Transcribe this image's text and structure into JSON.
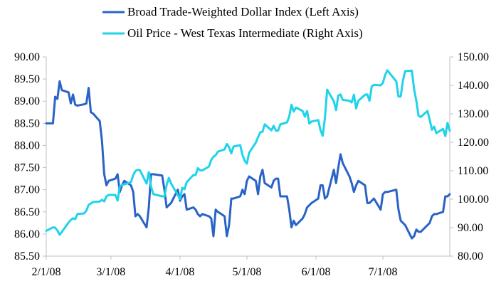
{
  "chart_data": {
    "type": "line",
    "legend_position": "top",
    "grid": false,
    "colors": {
      "dollar": "#2a63c6",
      "oil": "#1fd3ea",
      "axis": "#bfbfbf"
    },
    "x_tick_labels": [
      "2/1/08",
      "3/1/08",
      "4/1/08",
      "5/1/08",
      "6/1/08",
      "7/1/08"
    ],
    "x_tick_dates": [
      "2008-02-01",
      "2008-03-01",
      "2008-04-01",
      "2008-05-01",
      "2008-06-01",
      "2008-07-01"
    ],
    "xlim": [
      "2008-02-01",
      "2008-07-31"
    ],
    "y_left": {
      "ylim": [
        85.5,
        90.0
      ],
      "tick_labels": [
        "85.50",
        "86.00",
        "86.50",
        "87.00",
        "87.50",
        "88.00",
        "88.50",
        "89.00",
        "89.50",
        "90.00"
      ]
    },
    "y_right": {
      "ylim": [
        80.0,
        150.0
      ],
      "tick_labels": [
        "80.00",
        "90.00",
        "100.00",
        "110.00",
        "120.00",
        "130.00",
        "140.00",
        "150.00"
      ]
    },
    "series": [
      {
        "name": "Broad Trade-Weighted Dollar Index (Left Axis)",
        "axis": "left",
        "points": [
          [
            "2008-02-01",
            88.5
          ],
          [
            "2008-02-04",
            88.5
          ],
          [
            "2008-02-05",
            89.1
          ],
          [
            "2008-02-06",
            89.05
          ],
          [
            "2008-02-07",
            89.45
          ],
          [
            "2008-02-08",
            89.25
          ],
          [
            "2008-02-11",
            89.2
          ],
          [
            "2008-02-12",
            88.95
          ],
          [
            "2008-02-13",
            89.15
          ],
          [
            "2008-02-14",
            88.92
          ],
          [
            "2008-02-15",
            88.9
          ],
          [
            "2008-02-18",
            88.93
          ],
          [
            "2008-02-19",
            88.95
          ],
          [
            "2008-02-20",
            89.3
          ],
          [
            "2008-02-21",
            88.75
          ],
          [
            "2008-02-22",
            88.72
          ],
          [
            "2008-02-25",
            88.55
          ],
          [
            "2008-02-26",
            88.1
          ],
          [
            "2008-02-27",
            87.35
          ],
          [
            "2008-02-28",
            87.1
          ],
          [
            "2008-02-29",
            87.2
          ],
          [
            "2008-03-03",
            87.25
          ],
          [
            "2008-03-04",
            87.35
          ],
          [
            "2008-03-05",
            86.95
          ],
          [
            "2008-03-06",
            87.1
          ],
          [
            "2008-03-07",
            87.2
          ],
          [
            "2008-03-10",
            87.1
          ],
          [
            "2008-03-11",
            86.95
          ],
          [
            "2008-03-12",
            86.4
          ],
          [
            "2008-03-13",
            86.45
          ],
          [
            "2008-03-14",
            86.4
          ],
          [
            "2008-03-17",
            86.15
          ],
          [
            "2008-03-18",
            86.6
          ],
          [
            "2008-03-19",
            87.35
          ],
          [
            "2008-03-20",
            87.35
          ],
          [
            "2008-03-24",
            87.32
          ],
          [
            "2008-03-25",
            87.0
          ],
          [
            "2008-03-26",
            86.6
          ],
          [
            "2008-03-27",
            86.65
          ],
          [
            "2008-03-28",
            86.7
          ],
          [
            "2008-03-31",
            87.0
          ],
          [
            "2008-04-01",
            86.75
          ],
          [
            "2008-04-02",
            86.85
          ],
          [
            "2008-04-03",
            86.9
          ],
          [
            "2008-04-04",
            86.55
          ],
          [
            "2008-04-07",
            86.6
          ],
          [
            "2008-04-08",
            86.55
          ],
          [
            "2008-04-09",
            86.45
          ],
          [
            "2008-04-10",
            86.4
          ],
          [
            "2008-04-11",
            86.45
          ],
          [
            "2008-04-14",
            86.4
          ],
          [
            "2008-04-15",
            86.35
          ],
          [
            "2008-04-16",
            85.95
          ],
          [
            "2008-04-17",
            86.55
          ],
          [
            "2008-04-18",
            86.5
          ],
          [
            "2008-04-21",
            86.4
          ],
          [
            "2008-04-22",
            85.95
          ],
          [
            "2008-04-23",
            86.2
          ],
          [
            "2008-04-24",
            86.8
          ],
          [
            "2008-04-25",
            86.8
          ],
          [
            "2008-04-28",
            86.85
          ],
          [
            "2008-04-29",
            87.0
          ],
          [
            "2008-04-30",
            86.9
          ],
          [
            "2008-05-01",
            87.2
          ],
          [
            "2008-05-02",
            87.3
          ],
          [
            "2008-05-05",
            87.2
          ],
          [
            "2008-05-06",
            86.9
          ],
          [
            "2008-05-07",
            87.3
          ],
          [
            "2008-05-08",
            87.45
          ],
          [
            "2008-05-09",
            87.15
          ],
          [
            "2008-05-12",
            87.05
          ],
          [
            "2008-05-13",
            87.2
          ],
          [
            "2008-05-14",
            87.25
          ],
          [
            "2008-05-15",
            87.25
          ],
          [
            "2008-05-16",
            86.85
          ],
          [
            "2008-05-19",
            86.85
          ],
          [
            "2008-05-20",
            86.55
          ],
          [
            "2008-05-21",
            86.15
          ],
          [
            "2008-05-22",
            86.3
          ],
          [
            "2008-05-23",
            86.2
          ],
          [
            "2008-05-26",
            86.35
          ],
          [
            "2008-05-27",
            86.45
          ],
          [
            "2008-05-28",
            86.6
          ],
          [
            "2008-05-29",
            86.65
          ],
          [
            "2008-05-30",
            86.7
          ],
          [
            "2008-06-02",
            86.8
          ],
          [
            "2008-06-03",
            87.1
          ],
          [
            "2008-06-04",
            87.1
          ],
          [
            "2008-06-05",
            86.8
          ],
          [
            "2008-06-06",
            86.85
          ],
          [
            "2008-06-09",
            87.45
          ],
          [
            "2008-06-10",
            87.15
          ],
          [
            "2008-06-11",
            87.5
          ],
          [
            "2008-06-12",
            87.8
          ],
          [
            "2008-06-13",
            87.6
          ],
          [
            "2008-06-16",
            87.3
          ],
          [
            "2008-06-17",
            87.15
          ],
          [
            "2008-06-18",
            86.95
          ],
          [
            "2008-06-19",
            87.1
          ],
          [
            "2008-06-20",
            87.2
          ],
          [
            "2008-06-23",
            87.1
          ],
          [
            "2008-06-24",
            86.7
          ],
          [
            "2008-06-25",
            86.7
          ],
          [
            "2008-06-26",
            86.75
          ],
          [
            "2008-06-27",
            86.8
          ],
          [
            "2008-06-30",
            86.55
          ],
          [
            "2008-07-01",
            86.9
          ],
          [
            "2008-07-02",
            86.95
          ],
          [
            "2008-07-03",
            86.95
          ],
          [
            "2008-07-07",
            87.0
          ],
          [
            "2008-07-08",
            86.55
          ],
          [
            "2008-07-09",
            86.3
          ],
          [
            "2008-07-10",
            86.25
          ],
          [
            "2008-07-11",
            86.2
          ],
          [
            "2008-07-14",
            85.9
          ],
          [
            "2008-07-15",
            85.95
          ],
          [
            "2008-07-16",
            86.1
          ],
          [
            "2008-07-17",
            86.05
          ],
          [
            "2008-07-18",
            86.05
          ],
          [
            "2008-07-21",
            86.2
          ],
          [
            "2008-07-22",
            86.25
          ],
          [
            "2008-07-23",
            86.4
          ],
          [
            "2008-07-24",
            86.45
          ],
          [
            "2008-07-25",
            86.45
          ],
          [
            "2008-07-28",
            86.5
          ],
          [
            "2008-07-29",
            86.85
          ],
          [
            "2008-07-30",
            86.85
          ],
          [
            "2008-07-31",
            86.9
          ]
        ]
      },
      {
        "name": "Oil Price - West Texas Intermediate (Right Axis)",
        "axis": "right",
        "points": [
          [
            "2008-02-01",
            88.9
          ],
          [
            "2008-02-04",
            90.1
          ],
          [
            "2008-02-05",
            90.0
          ],
          [
            "2008-02-06",
            89.0
          ],
          [
            "2008-02-07",
            87.5
          ],
          [
            "2008-02-08",
            88.5
          ],
          [
            "2008-02-11",
            91.8
          ],
          [
            "2008-02-12",
            92.7
          ],
          [
            "2008-02-13",
            93.3
          ],
          [
            "2008-02-14",
            93.0
          ],
          [
            "2008-02-15",
            94.8
          ],
          [
            "2008-02-18",
            95.0
          ],
          [
            "2008-02-19",
            96.0
          ],
          [
            "2008-02-20",
            98.0
          ],
          [
            "2008-02-21",
            98.5
          ],
          [
            "2008-02-22",
            99.0
          ],
          [
            "2008-02-25",
            99.2
          ],
          [
            "2008-02-26",
            99.8
          ],
          [
            "2008-02-27",
            99.2
          ],
          [
            "2008-02-28",
            101.0
          ],
          [
            "2008-02-29",
            101.5
          ],
          [
            "2008-03-03",
            101.5
          ],
          [
            "2008-03-04",
            99.5
          ],
          [
            "2008-03-05",
            104.5
          ],
          [
            "2008-03-06",
            105.0
          ],
          [
            "2008-03-07",
            105.2
          ],
          [
            "2008-03-10",
            106.0
          ],
          [
            "2008-03-11",
            108.5
          ],
          [
            "2008-03-12",
            109.9
          ],
          [
            "2008-03-13",
            110.3
          ],
          [
            "2008-03-14",
            110.2
          ],
          [
            "2008-03-17",
            105.5
          ],
          [
            "2008-03-18",
            109.5
          ],
          [
            "2008-03-19",
            104.5
          ],
          [
            "2008-03-20",
            101.8
          ],
          [
            "2008-03-24",
            101.0
          ],
          [
            "2008-03-25",
            101.0
          ],
          [
            "2008-03-26",
            105.0
          ],
          [
            "2008-03-27",
            107.5
          ],
          [
            "2008-03-28",
            105.5
          ],
          [
            "2008-03-31",
            101.5
          ],
          [
            "2008-04-01",
            100.0
          ],
          [
            "2008-04-02",
            104.0
          ],
          [
            "2008-04-03",
            103.5
          ],
          [
            "2008-04-04",
            106.0
          ],
          [
            "2008-04-07",
            108.5
          ],
          [
            "2008-04-08",
            108.5
          ],
          [
            "2008-04-09",
            110.9
          ],
          [
            "2008-04-10",
            110.2
          ],
          [
            "2008-04-11",
            110.1
          ],
          [
            "2008-04-14",
            111.5
          ],
          [
            "2008-04-15",
            113.8
          ],
          [
            "2008-04-16",
            114.9
          ],
          [
            "2008-04-17",
            115.5
          ],
          [
            "2008-04-18",
            116.7
          ],
          [
            "2008-04-21",
            117.5
          ],
          [
            "2008-04-22",
            119.4
          ],
          [
            "2008-04-23",
            118.3
          ],
          [
            "2008-04-24",
            116.1
          ],
          [
            "2008-04-25",
            118.5
          ],
          [
            "2008-04-28",
            119.0
          ],
          [
            "2008-04-29",
            115.6
          ],
          [
            "2008-04-30",
            113.5
          ],
          [
            "2008-05-01",
            112.5
          ],
          [
            "2008-05-02",
            116.3
          ],
          [
            "2008-05-05",
            119.9
          ],
          [
            "2008-05-06",
            121.8
          ],
          [
            "2008-05-07",
            123.5
          ],
          [
            "2008-05-08",
            123.7
          ],
          [
            "2008-05-09",
            126.3
          ],
          [
            "2008-05-12",
            124.2
          ],
          [
            "2008-05-13",
            125.8
          ],
          [
            "2008-05-14",
            124.1
          ],
          [
            "2008-05-15",
            124.1
          ],
          [
            "2008-05-16",
            126.3
          ],
          [
            "2008-05-19",
            127.0
          ],
          [
            "2008-05-20",
            129.1
          ],
          [
            "2008-05-21",
            133.2
          ],
          [
            "2008-05-22",
            130.8
          ],
          [
            "2008-05-23",
            132.2
          ],
          [
            "2008-05-26",
            131.0
          ],
          [
            "2008-05-27",
            129.0
          ],
          [
            "2008-05-28",
            131.0
          ],
          [
            "2008-05-29",
            126.6
          ],
          [
            "2008-05-30",
            127.3
          ],
          [
            "2008-06-02",
            127.8
          ],
          [
            "2008-06-03",
            124.3
          ],
          [
            "2008-06-04",
            122.3
          ],
          [
            "2008-06-05",
            128.5
          ],
          [
            "2008-06-06",
            138.5
          ],
          [
            "2008-06-09",
            134.4
          ],
          [
            "2008-06-10",
            131.3
          ],
          [
            "2008-06-11",
            136.4
          ],
          [
            "2008-06-12",
            136.8
          ],
          [
            "2008-06-13",
            134.9
          ],
          [
            "2008-06-16",
            134.6
          ],
          [
            "2008-06-17",
            134.0
          ],
          [
            "2008-06-18",
            136.7
          ],
          [
            "2008-06-19",
            131.9
          ],
          [
            "2008-06-20",
            134.6
          ],
          [
            "2008-06-23",
            136.7
          ],
          [
            "2008-06-24",
            136.8
          ],
          [
            "2008-06-25",
            134.6
          ],
          [
            "2008-06-26",
            139.6
          ],
          [
            "2008-06-27",
            140.2
          ],
          [
            "2008-06-30",
            140.0
          ],
          [
            "2008-07-01",
            140.9
          ],
          [
            "2008-07-02",
            143.6
          ],
          [
            "2008-07-03",
            145.3
          ],
          [
            "2008-07-07",
            141.4
          ],
          [
            "2008-07-08",
            136.1
          ],
          [
            "2008-07-09",
            136.1
          ],
          [
            "2008-07-10",
            141.7
          ],
          [
            "2008-07-11",
            145.0
          ],
          [
            "2008-07-14",
            145.2
          ],
          [
            "2008-07-15",
            138.7
          ],
          [
            "2008-07-16",
            134.6
          ],
          [
            "2008-07-17",
            129.3
          ],
          [
            "2008-07-18",
            128.9
          ],
          [
            "2008-07-21",
            131.0
          ],
          [
            "2008-07-22",
            127.9
          ],
          [
            "2008-07-23",
            124.4
          ],
          [
            "2008-07-24",
            125.5
          ],
          [
            "2008-07-25",
            123.2
          ],
          [
            "2008-07-28",
            124.7
          ],
          [
            "2008-07-29",
            122.2
          ],
          [
            "2008-07-30",
            126.8
          ],
          [
            "2008-07-31",
            124.1
          ]
        ]
      }
    ]
  }
}
